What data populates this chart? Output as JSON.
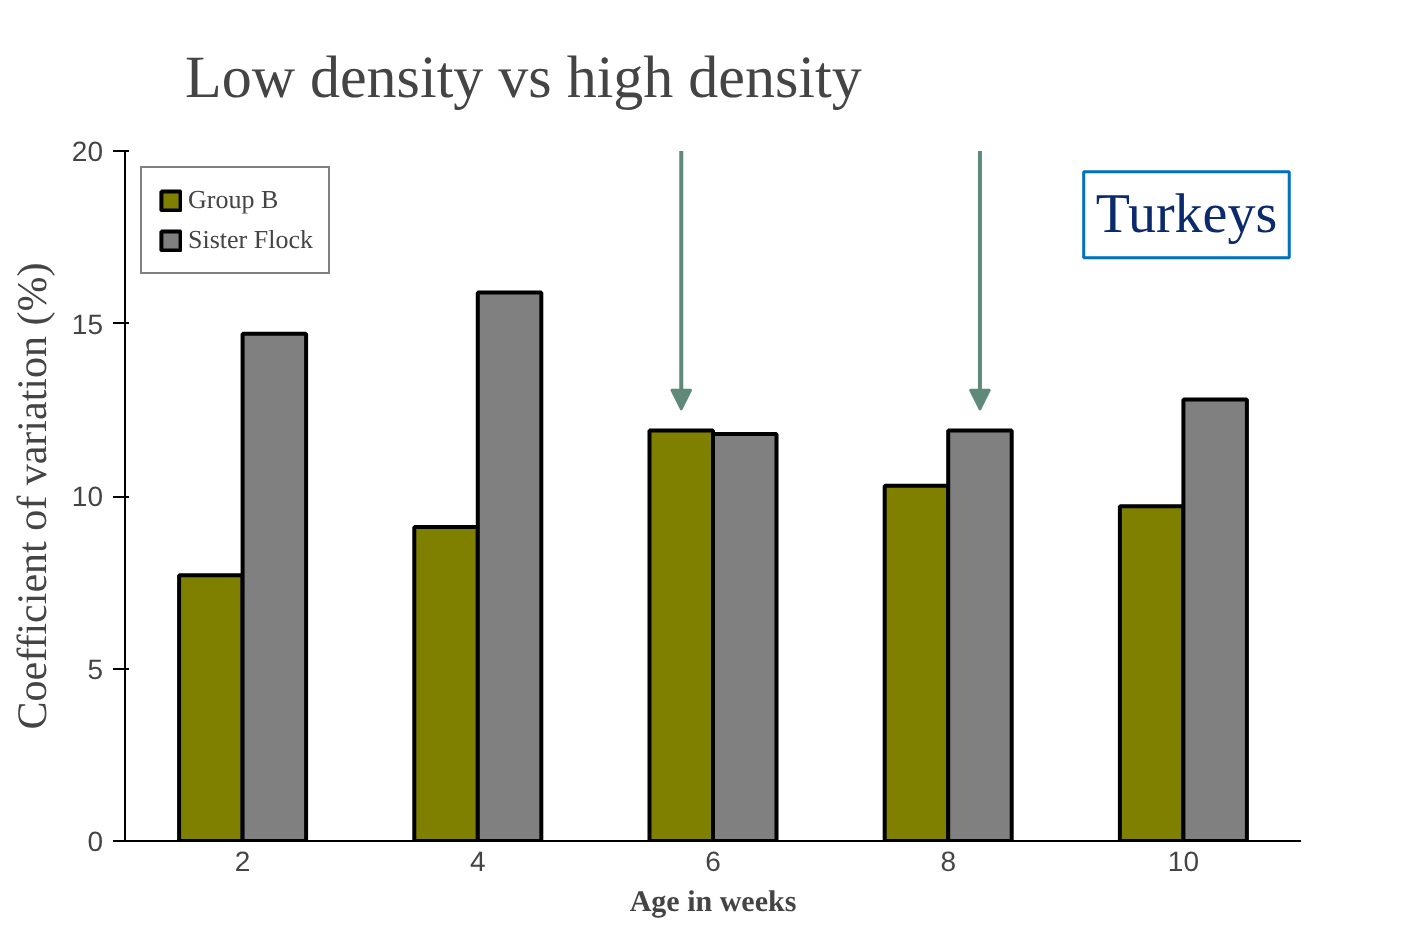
{
  "chart_data": {
    "type": "bar",
    "title": "Low density vs high density",
    "xlabel": "Age in weeks",
    "ylabel": "Coefficient of variation (%)",
    "categories": [
      "2",
      "4",
      "6",
      "8",
      "10"
    ],
    "series": [
      {
        "name": "Group B",
        "color": "#808000",
        "values": [
          7.7,
          9.1,
          11.9,
          10.3,
          9.7
        ]
      },
      {
        "name": "Sister Flock",
        "color": "#808080",
        "values": [
          14.7,
          15.9,
          11.8,
          11.9,
          12.8
        ]
      }
    ],
    "ylim": [
      0,
      20
    ],
    "yticks": [
      0,
      5,
      10,
      15,
      20
    ],
    "grid": false,
    "legend": "top left",
    "annotations": [
      "Turkeys"
    ]
  }
}
